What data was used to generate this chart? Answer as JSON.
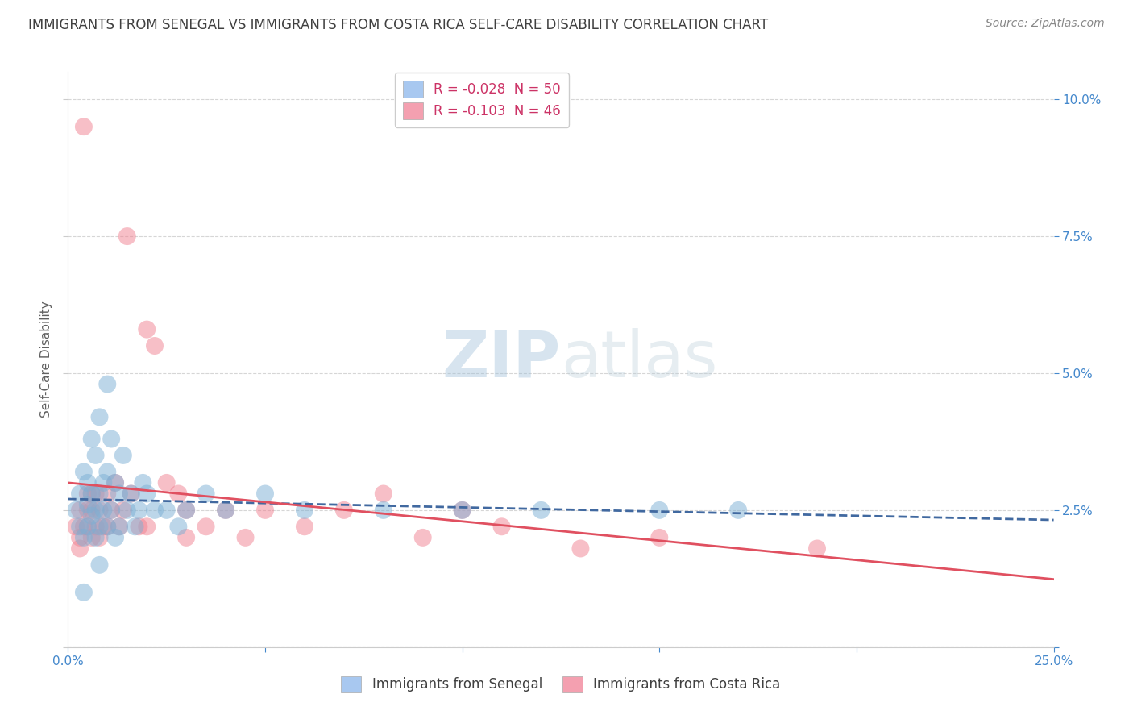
{
  "title": "IMMIGRANTS FROM SENEGAL VS IMMIGRANTS FROM COSTA RICA SELF-CARE DISABILITY CORRELATION CHART",
  "source": "Source: ZipAtlas.com",
  "ylabel": "Self-Care Disability",
  "xlabel": "",
  "xlim": [
    0.0,
    0.25
  ],
  "ylim": [
    0.0,
    0.105
  ],
  "xticks": [
    0.0,
    0.05,
    0.1,
    0.15,
    0.2,
    0.25
  ],
  "xticklabels": [
    "0.0%",
    "",
    "",
    "",
    "",
    "25.0%"
  ],
  "yticks": [
    0.0,
    0.025,
    0.05,
    0.075,
    0.1
  ],
  "yticklabels": [
    "",
    "2.5%",
    "5.0%",
    "7.5%",
    "10.0%"
  ],
  "legend1_label": "R = -0.028  N = 50",
  "legend2_label": "R = -0.103  N = 46",
  "legend1_color": "#a8c8f0",
  "legend2_color": "#f4a0b0",
  "senegal_color": "#7bafd4",
  "costarica_color": "#f08090",
  "trendline_senegal_color": "#4169a0",
  "trendline_costarica_color": "#e05060",
  "watermark_zip": "ZIP",
  "watermark_atlas": "atlas",
  "background_color": "#ffffff",
  "grid_color": "#cccccc",
  "title_color": "#404040",
  "senegal_x": [
    0.002,
    0.003,
    0.003,
    0.004,
    0.004,
    0.005,
    0.005,
    0.005,
    0.006,
    0.006,
    0.006,
    0.007,
    0.007,
    0.007,
    0.008,
    0.008,
    0.008,
    0.009,
    0.009,
    0.01,
    0.01,
    0.01,
    0.011,
    0.011,
    0.012,
    0.012,
    0.013,
    0.013,
    0.014,
    0.015,
    0.016,
    0.017,
    0.018,
    0.019,
    0.02,
    0.022,
    0.025,
    0.028,
    0.03,
    0.035,
    0.04,
    0.05,
    0.06,
    0.08,
    0.1,
    0.12,
    0.15,
    0.17,
    0.004,
    0.008
  ],
  "senegal_y": [
    0.025,
    0.028,
    0.022,
    0.032,
    0.02,
    0.026,
    0.03,
    0.022,
    0.038,
    0.024,
    0.028,
    0.035,
    0.025,
    0.02,
    0.042,
    0.028,
    0.022,
    0.03,
    0.025,
    0.048,
    0.032,
    0.022,
    0.038,
    0.025,
    0.03,
    0.02,
    0.028,
    0.022,
    0.035,
    0.025,
    0.028,
    0.022,
    0.025,
    0.03,
    0.028,
    0.025,
    0.025,
    0.022,
    0.025,
    0.028,
    0.025,
    0.028,
    0.025,
    0.025,
    0.025,
    0.025,
    0.025,
    0.025,
    0.01,
    0.015
  ],
  "costarica_x": [
    0.002,
    0.003,
    0.003,
    0.004,
    0.005,
    0.005,
    0.006,
    0.006,
    0.007,
    0.007,
    0.008,
    0.008,
    0.009,
    0.01,
    0.01,
    0.011,
    0.012,
    0.013,
    0.014,
    0.015,
    0.016,
    0.018,
    0.02,
    0.022,
    0.025,
    0.028,
    0.03,
    0.035,
    0.04,
    0.045,
    0.05,
    0.06,
    0.07,
    0.08,
    0.09,
    0.1,
    0.11,
    0.13,
    0.15,
    0.19,
    0.003,
    0.004,
    0.005,
    0.006,
    0.02,
    0.03
  ],
  "costarica_y": [
    0.022,
    0.025,
    0.02,
    0.095,
    0.028,
    0.022,
    0.025,
    0.02,
    0.028,
    0.022,
    0.025,
    0.02,
    0.022,
    0.028,
    0.022,
    0.025,
    0.03,
    0.022,
    0.025,
    0.075,
    0.028,
    0.022,
    0.058,
    0.055,
    0.03,
    0.028,
    0.025,
    0.022,
    0.025,
    0.02,
    0.025,
    0.022,
    0.025,
    0.028,
    0.02,
    0.025,
    0.022,
    0.018,
    0.02,
    0.018,
    0.018,
    0.022,
    0.025,
    0.028,
    0.022,
    0.02
  ]
}
